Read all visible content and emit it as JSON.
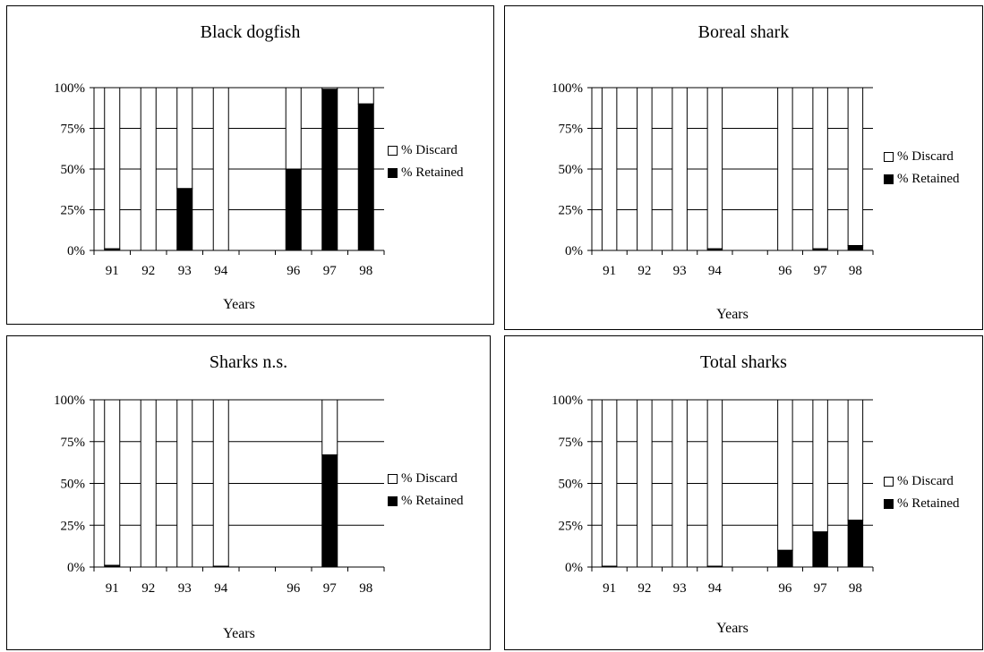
{
  "legend": {
    "discard": "% Discard",
    "retained": "% Retained"
  },
  "colors": {
    "discard": "#ffffff",
    "retained": "#000000",
    "grid": "#000000"
  },
  "chart_data": [
    {
      "type": "bar",
      "stacked": true,
      "title": "Black dogfish",
      "xlabel": "Years",
      "ylabel": "",
      "ylim": [
        0,
        100
      ],
      "yticks": [
        "0%",
        "25%",
        "50%",
        "75%",
        "100%"
      ],
      "categories": [
        "91",
        "92",
        "93",
        "94",
        "",
        "96",
        "97",
        "98"
      ],
      "series": [
        {
          "name": "% Retained",
          "values": [
            1,
            0,
            38,
            0,
            null,
            50,
            99,
            90
          ]
        },
        {
          "name": "% Discard",
          "values": [
            99,
            100,
            62,
            100,
            null,
            50,
            1,
            10
          ]
        }
      ],
      "grid": true,
      "legend_position": "right"
    },
    {
      "type": "bar",
      "stacked": true,
      "title": "Boreal shark",
      "xlabel": "Years",
      "ylabel": "",
      "ylim": [
        0,
        100
      ],
      "yticks": [
        "0%",
        "25%",
        "50%",
        "75%",
        "100%"
      ],
      "categories": [
        "91",
        "92",
        "93",
        "94",
        "",
        "96",
        "97",
        "98"
      ],
      "series": [
        {
          "name": "% Retained",
          "values": [
            0,
            0,
            0,
            1,
            null,
            0,
            1,
            3
          ]
        },
        {
          "name": "% Discard",
          "values": [
            100,
            100,
            100,
            99,
            null,
            100,
            99,
            97
          ]
        }
      ],
      "grid": true,
      "legend_position": "right"
    },
    {
      "type": "bar",
      "stacked": true,
      "title": "Sharks n.s.",
      "xlabel": "Years",
      "ylabel": "",
      "ylim": [
        0,
        100
      ],
      "yticks": [
        "0%",
        "25%",
        "50%",
        "75%",
        "100%"
      ],
      "categories": [
        "91",
        "92",
        "93",
        "94",
        "",
        "96",
        "97",
        "98"
      ],
      "series": [
        {
          "name": "% Retained",
          "values": [
            1,
            0,
            0,
            0.5,
            null,
            null,
            67,
            null
          ]
        },
        {
          "name": "% Discard",
          "values": [
            99,
            100,
            100,
            99.5,
            null,
            null,
            33,
            null
          ]
        }
      ],
      "grid": true,
      "legend_position": "right"
    },
    {
      "type": "bar",
      "stacked": true,
      "title": "Total sharks",
      "xlabel": "Years",
      "ylabel": "",
      "ylim": [
        0,
        100
      ],
      "yticks": [
        "0%",
        "25%",
        "50%",
        "75%",
        "100%"
      ],
      "categories": [
        "91",
        "92",
        "93",
        "94",
        "",
        "96",
        "97",
        "98"
      ],
      "series": [
        {
          "name": "% Retained",
          "values": [
            0.5,
            0,
            0,
            0.5,
            null,
            10,
            21,
            28
          ]
        },
        {
          "name": "% Discard",
          "values": [
            99.5,
            100,
            100,
            99.5,
            null,
            90,
            79,
            72
          ]
        }
      ],
      "grid": true,
      "legend_position": "right"
    }
  ]
}
